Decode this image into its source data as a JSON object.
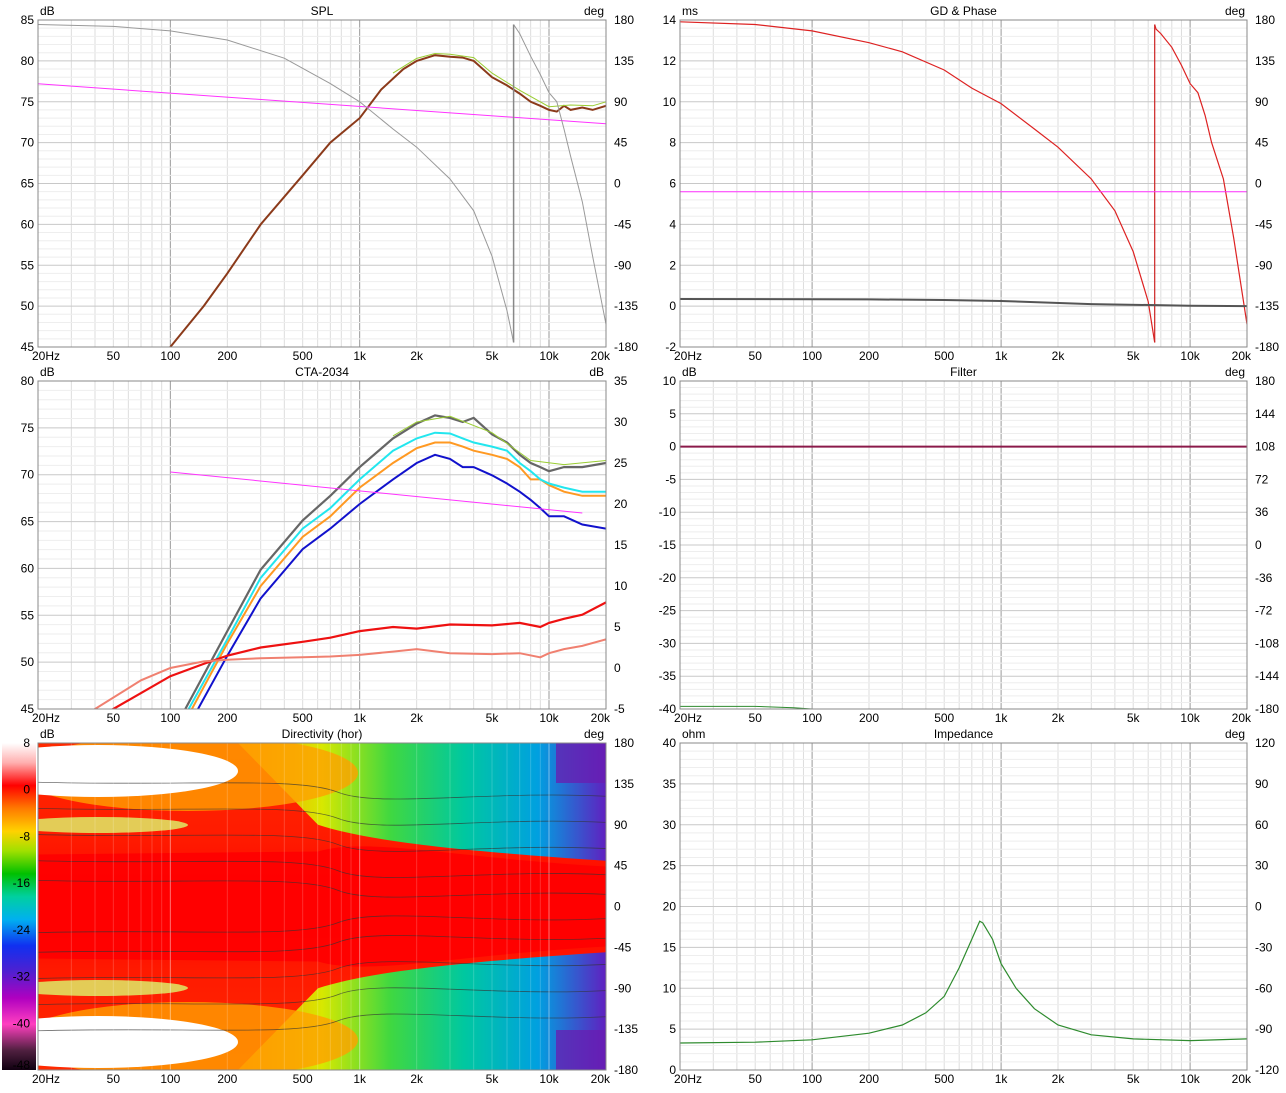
{
  "charts": [
    {
      "id": "spl",
      "title": "SPL",
      "left_unit": "dB",
      "right_unit": "deg",
      "y_ticks": [
        "85",
        "80",
        "75",
        "70",
        "65",
        "60",
        "55",
        "50",
        "45"
      ],
      "right_ticks": [
        "180",
        "135",
        "90",
        "45",
        "0",
        "-45",
        "-90",
        "-135",
        "-180"
      ],
      "x_ticks": [
        "20Hz",
        "50",
        "100",
        "200",
        "500",
        "1k",
        "2k",
        "5k",
        "10k",
        "20k"
      ]
    },
    {
      "id": "gd_phase",
      "title": "GD & Phase",
      "left_unit": "ms",
      "right_unit": "deg",
      "y_ticks": [
        "14",
        "12",
        "10",
        "8",
        "6",
        "4",
        "2",
        "0",
        "-2"
      ],
      "right_ticks": [
        "180",
        "135",
        "90",
        "45",
        "0",
        "-45",
        "-90",
        "-135",
        "-180"
      ],
      "x_ticks": [
        "20Hz",
        "50",
        "100",
        "200",
        "500",
        "1k",
        "2k",
        "5k",
        "10k",
        "20k"
      ]
    },
    {
      "id": "cta",
      "title": "CTA-2034",
      "left_unit": "dB",
      "right_unit": "dB",
      "y_ticks": [
        "80",
        "75",
        "70",
        "65",
        "60",
        "55",
        "50",
        "45"
      ],
      "right_ticks": [
        "35",
        "30",
        "25",
        "20",
        "15",
        "10",
        "5",
        "0",
        "-5"
      ],
      "x_ticks": [
        "20Hz",
        "50",
        "100",
        "200",
        "500",
        "1k",
        "2k",
        "5k",
        "10k",
        "20k"
      ]
    },
    {
      "id": "filter",
      "title": "Filter",
      "left_unit": "dB",
      "right_unit": "deg",
      "y_ticks": [
        "10",
        "5",
        "0",
        "-5",
        "-10",
        "-15",
        "-20",
        "-25",
        "-30",
        "-35",
        "-40"
      ],
      "right_ticks": [
        "180",
        "144",
        "108",
        "72",
        "36",
        "0",
        "-36",
        "-72",
        "-108",
        "-144",
        "-180"
      ],
      "x_ticks": [
        "20Hz",
        "50",
        "100",
        "200",
        "500",
        "1k",
        "2k",
        "5k",
        "10k",
        "20k"
      ]
    },
    {
      "id": "directivity",
      "title": "Directivity (hor)",
      "left_unit": "dB",
      "right_unit": "deg",
      "scale_ticks": [
        "8",
        "0",
        "-8",
        "-16",
        "-24",
        "-32",
        "-40",
        "-48"
      ],
      "right_ticks": [
        "180",
        "135",
        "90",
        "45",
        "0",
        "-45",
        "-90",
        "-135",
        "-180"
      ],
      "x_ticks": [
        "20Hz",
        "50",
        "100",
        "200",
        "500",
        "1k",
        "2k",
        "5k",
        "10k",
        "20k"
      ]
    },
    {
      "id": "impedance",
      "title": "Impedance",
      "left_unit": "ohm",
      "right_unit": "deg",
      "y_ticks": [
        "40",
        "35",
        "30",
        "25",
        "20",
        "15",
        "10",
        "5",
        "0"
      ],
      "right_ticks": [
        "120",
        "90",
        "60",
        "30",
        "0",
        "-30",
        "-60",
        "-90",
        "-120"
      ],
      "x_ticks": [
        "20Hz",
        "50",
        "100",
        "200",
        "500",
        "1k",
        "2k",
        "5k",
        "10k",
        "20k"
      ]
    }
  ],
  "chart_data": [
    {
      "type": "line",
      "title": "SPL",
      "x_scale": "log",
      "xlim": [
        20,
        20000
      ],
      "ylim": [
        45,
        85
      ],
      "y2lim": [
        -180,
        180
      ],
      "series": [
        {
          "axis": "left",
          "color": "#8b3a1a",
          "width": 2,
          "x": [
            100,
            150,
            200,
            300,
            500,
            700,
            1000,
            1300,
            1700,
            2000,
            2500,
            3000,
            3500,
            4000,
            5000,
            6000,
            7000,
            8000,
            9000,
            10000,
            11000,
            12000,
            13000,
            15000,
            17000,
            20000
          ],
          "y": [
            45,
            50,
            54,
            60,
            66,
            70,
            73,
            76.5,
            79,
            80,
            80.7,
            80.5,
            80.4,
            80,
            78,
            77,
            76,
            75,
            74.5,
            74,
            73.8,
            74.5,
            74,
            74.3,
            74,
            74.5
          ]
        },
        {
          "axis": "left",
          "color": "#9acd32",
          "width": 1,
          "x": [
            1500,
            2000,
            2500,
            3000,
            4000,
            5000,
            7000,
            10000,
            13000,
            17000,
            20000
          ],
          "y": [
            78.5,
            80.3,
            80.9,
            80.8,
            80.4,
            78.5,
            76.4,
            74.4,
            74.6,
            74.5,
            75
          ]
        },
        {
          "axis": "left",
          "color": "#ff33ff",
          "width": 1,
          "x": [
            20,
            20000
          ],
          "y": [
            77.2,
            72.3
          ]
        },
        {
          "axis": "right",
          "color": "#999999",
          "width": 1,
          "x": [
            20,
            50,
            100,
            200,
            400,
            700,
            1000,
            1500,
            2000,
            3000,
            4000,
            5000,
            6000,
            6500
          ],
          "y": [
            175,
            173,
            168,
            158,
            138,
            110,
            90,
            60,
            40,
            5,
            -30,
            -80,
            -140,
            -175
          ]
        },
        {
          "axis": "right",
          "color": "#999999",
          "width": 1,
          "x": [
            6500,
            7000,
            8000,
            9000,
            10000,
            11000,
            12000,
            13000,
            15000,
            17000,
            20000
          ],
          "y": [
            175,
            165,
            140,
            120,
            100,
            90,
            60,
            30,
            -20,
            -80,
            -155
          ]
        },
        {
          "axis": "right",
          "color": "#888888",
          "width": 1.5,
          "x": [
            6500,
            6500
          ],
          "y": [
            -175,
            175
          ]
        }
      ]
    },
    {
      "type": "line",
      "title": "GD & Phase",
      "x_scale": "log",
      "xlim": [
        20,
        20000
      ],
      "ylim": [
        -2,
        14
      ],
      "y2lim": [
        -180,
        180
      ],
      "series": [
        {
          "axis": "right",
          "color": "#dd2222",
          "width": 1.2,
          "x": [
            20,
            50,
            100,
            200,
            300,
            500,
            700,
            1000,
            1500,
            2000,
            3000,
            4000,
            5000,
            6000,
            6500
          ],
          "y": [
            178,
            175,
            168,
            155,
            145,
            125,
            105,
            88,
            60,
            40,
            5,
            -30,
            -75,
            -130,
            -175
          ]
        },
        {
          "axis": "right",
          "color": "#dd2222",
          "width": 1.2,
          "x": [
            6500,
            6600,
            7000,
            8000,
            9000,
            10000,
            11000,
            12000,
            13000,
            15000,
            17000,
            20000
          ],
          "y": [
            175,
            170,
            165,
            150,
            130,
            110,
            100,
            75,
            45,
            5,
            -60,
            -155
          ]
        },
        {
          "axis": "right",
          "color": "#cc2222",
          "width": 1.2,
          "x": [
            6500,
            6500
          ],
          "y": [
            -175,
            175
          ]
        },
        {
          "axis": "left",
          "color": "#555555",
          "width": 2,
          "x": [
            20,
            200,
            500,
            1000,
            3000,
            10000,
            20000
          ],
          "y": [
            0.35,
            0.33,
            0.3,
            0.25,
            0.1,
            0.02,
            0.0
          ]
        },
        {
          "axis": "left",
          "color": "#ff33ff",
          "width": 1,
          "x": [
            20,
            20000
          ],
          "y": [
            5.6,
            5.6
          ]
        }
      ]
    },
    {
      "type": "line",
      "title": "CTA-2034",
      "x_scale": "log",
      "xlim": [
        20,
        20000
      ],
      "ylim": [
        45,
        85
      ],
      "y2lim": [
        -5,
        35
      ],
      "series": [
        {
          "axis": "left",
          "color": "#ff9922",
          "width": 2,
          "x": [
            130,
            200,
            300,
            500,
            700,
            1000,
            1500,
            2000,
            2500,
            3000,
            3500,
            4000,
            5000,
            6000,
            7000,
            8000,
            9000,
            10000,
            12000,
            15000,
            20000
          ],
          "y": [
            45,
            53,
            60,
            66,
            68.5,
            72,
            75,
            76.8,
            77.5,
            77.5,
            77,
            76.5,
            76,
            75.5,
            74.5,
            73,
            73,
            72.3,
            71.5,
            71,
            71
          ]
        },
        {
          "axis": "left",
          "color": "#22e6ee",
          "width": 2,
          "x": [
            125,
            200,
            300,
            500,
            700,
            1000,
            1500,
            2000,
            2500,
            3000,
            3500,
            4000,
            5000,
            6000,
            7000,
            8000,
            9000,
            10000,
            12000,
            15000,
            20000
          ],
          "y": [
            45,
            53.5,
            61,
            67,
            69.5,
            73,
            76.5,
            78,
            78.7,
            78.6,
            78,
            77.5,
            77,
            76.5,
            75,
            74,
            73,
            72.5,
            72,
            71.5,
            71.5
          ]
        },
        {
          "axis": "left",
          "color": "#1111cc",
          "width": 2,
          "x": [
            140,
            200,
            300,
            500,
            700,
            1000,
            1500,
            2000,
            2500,
            3000,
            3500,
            4000,
            5000,
            6000,
            7000,
            8000,
            9000,
            10000,
            12000,
            15000,
            20000
          ],
          "y": [
            45,
            51.5,
            58.5,
            64.5,
            67,
            70,
            73,
            75,
            76,
            75.5,
            74.5,
            74.5,
            73.5,
            72.5,
            71.5,
            70.5,
            69.5,
            68.5,
            68.5,
            67.5,
            67
          ]
        },
        {
          "axis": "left",
          "color": "#666666",
          "width": 2.2,
          "x": [
            120,
            200,
            300,
            500,
            700,
            1000,
            1500,
            2000,
            2500,
            3000,
            3500,
            4000,
            5000,
            6000,
            7000,
            8000,
            9000,
            10000,
            12000,
            15000,
            20000
          ],
          "y": [
            45,
            54.5,
            62,
            68,
            71,
            74.5,
            78,
            79.8,
            80.8,
            80.5,
            80,
            80.5,
            78.5,
            77.5,
            76,
            75,
            74.5,
            74,
            74.5,
            74.5,
            75
          ]
        },
        {
          "axis": "left",
          "color": "#9acd32",
          "width": 1,
          "x": [
            1500,
            2000,
            3000,
            5000,
            8000,
            12000,
            20000
          ],
          "y": [
            78.3,
            80,
            80.7,
            78.7,
            75.3,
            74.8,
            75.3
          ]
        },
        {
          "axis": "left",
          "color": "#ff33ff",
          "width": 1,
          "x": [
            100,
            15000
          ],
          "y": [
            73.9,
            68.9
          ]
        },
        {
          "axis": "right",
          "color": "#ee1111",
          "width": 2.2,
          "x": [
            20,
            50,
            100,
            150,
            200,
            300,
            500,
            700,
            1000,
            1500,
            2000,
            3000,
            5000,
            7000,
            9000,
            10000,
            12000,
            15000,
            20000
          ],
          "y": [
            -9,
            -5,
            -1,
            0.5,
            1.5,
            2.5,
            3.2,
            3.7,
            4.5,
            5,
            4.8,
            5.3,
            5.2,
            5.5,
            5,
            5.5,
            6,
            6.5,
            8
          ]
        },
        {
          "axis": "right",
          "color": "#f08070",
          "width": 2,
          "x": [
            20,
            40,
            70,
            100,
            150,
            200,
            300,
            500,
            700,
            1000,
            1500,
            2000,
            3000,
            5000,
            7000,
            9000,
            10000,
            12000,
            15000,
            20000
          ],
          "y": [
            -9,
            -5,
            -1.5,
            0,
            0.8,
            1,
            1.2,
            1.3,
            1.4,
            1.6,
            2,
            2.3,
            1.8,
            1.7,
            1.8,
            1.3,
            1.8,
            2.3,
            2.7,
            3.5
          ]
        }
      ]
    },
    {
      "type": "line",
      "title": "Filter",
      "x_scale": "log",
      "xlim": [
        20,
        20000
      ],
      "ylim": [
        -40,
        10
      ],
      "y2lim": [
        -180,
        180
      ],
      "series": [
        {
          "axis": "left",
          "color": "#8b1a4a",
          "width": 2,
          "x": [
            20,
            20000
          ],
          "y": [
            0,
            0
          ]
        },
        {
          "axis": "left",
          "color": "#2e8b2e",
          "width": 1,
          "x": [
            20,
            50,
            80,
            100,
            130
          ],
          "y": [
            -39.6,
            -39.6,
            -39.8,
            -40,
            -40.5
          ]
        }
      ]
    },
    {
      "type": "heatmap",
      "title": "Directivity (hor)",
      "x_scale": "log",
      "xlim": [
        20,
        20000
      ],
      "ylim": [
        -180,
        180
      ],
      "zlim": [
        -48,
        8
      ]
    },
    {
      "type": "line",
      "title": "Impedance",
      "x_scale": "log",
      "xlim": [
        20,
        20000
      ],
      "ylim": [
        0,
        40
      ],
      "y2lim": [
        -120,
        120
      ],
      "series": [
        {
          "axis": "left",
          "color": "#2e8b2e",
          "width": 1.2,
          "x": [
            20,
            50,
            100,
            200,
            300,
            400,
            500,
            600,
            700,
            770,
            800,
            900,
            1000,
            1200,
            1500,
            2000,
            3000,
            5000,
            10000,
            20000
          ],
          "y": [
            3.3,
            3.4,
            3.7,
            4.5,
            5.5,
            7,
            9,
            12.5,
            16,
            18.2,
            18,
            16,
            13,
            10,
            7.5,
            5.5,
            4.3,
            3.8,
            3.6,
            3.8
          ]
        }
      ]
    }
  ]
}
